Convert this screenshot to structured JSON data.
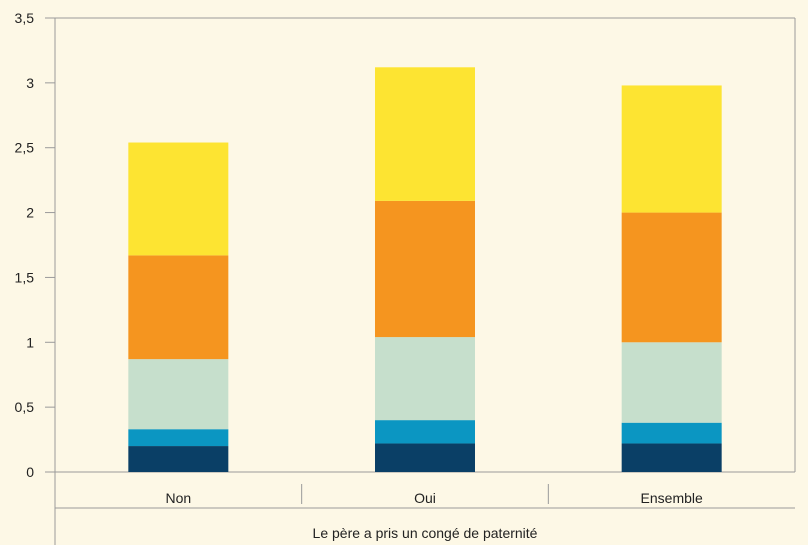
{
  "chart_data": {
    "type": "bar",
    "stacked": true,
    "title": "",
    "xlabel": "Le père a pris un congé de paternité",
    "ylabel": "",
    "categories": [
      "Non",
      "Oui",
      "Ensemble"
    ],
    "ylim": [
      0,
      3.5
    ],
    "yticks": [
      "0",
      "0,5",
      "1",
      "1,5",
      "2",
      "2,5",
      "3",
      "3,5"
    ],
    "grid": false,
    "legend": "none",
    "series": [
      {
        "values": [
          0.2,
          0.22,
          0.22
        ],
        "color": "#0a3f66"
      },
      {
        "values": [
          0.13,
          0.18,
          0.16
        ],
        "color": "#0b96c2"
      },
      {
        "values": [
          0.54,
          0.64,
          0.62
        ],
        "color": "#c6dfcc"
      },
      {
        "values": [
          0.8,
          1.05,
          1.0
        ],
        "color": "#f5951f"
      },
      {
        "values": [
          0.87,
          1.03,
          0.98
        ],
        "color": "#fde432"
      }
    ],
    "background": "#fdf8e6",
    "axis_color": "#9a9a9a"
  }
}
